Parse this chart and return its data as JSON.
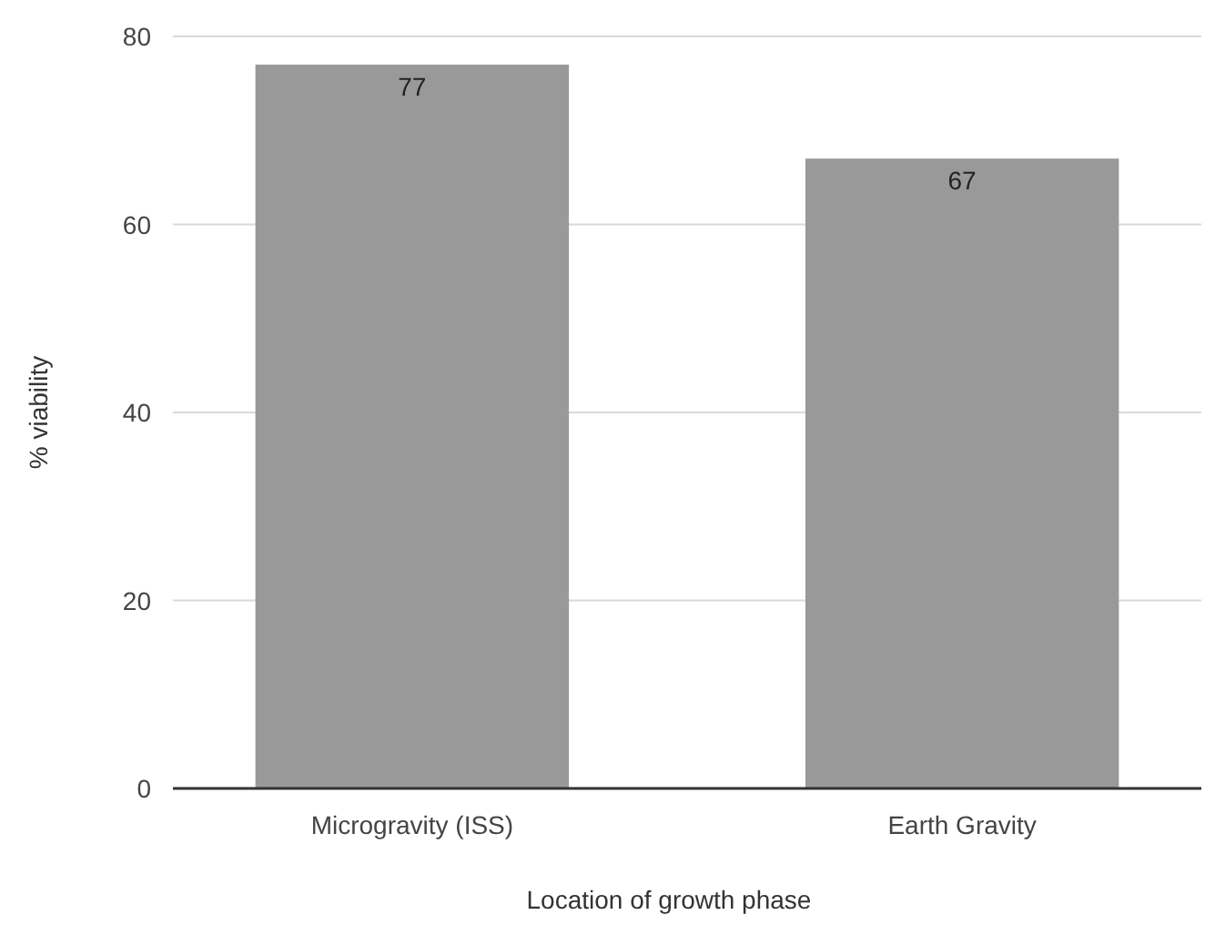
{
  "chart_data": {
    "type": "bar",
    "xlabel": "Location of growth phase",
    "ylabel": "% viability",
    "categories": [
      "Microgravity (ISS)",
      "Earth Gravity"
    ],
    "values": [
      77,
      67
    ],
    "color": "#999999",
    "ylim": [
      0,
      80
    ],
    "yticks": [
      0,
      20,
      40,
      60,
      80
    ],
    "grid": "y",
    "data_labels": true
  }
}
